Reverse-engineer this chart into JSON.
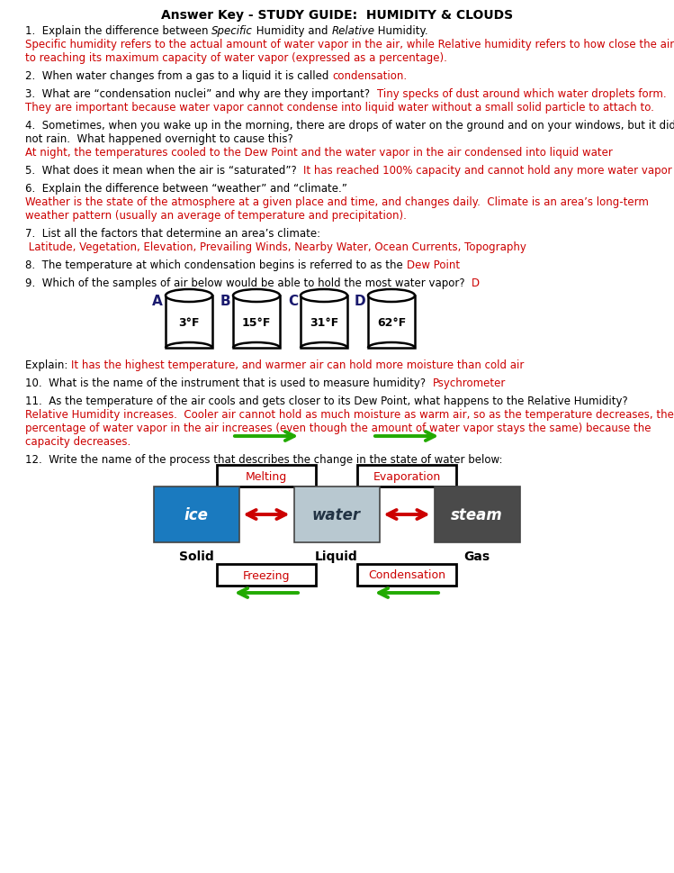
{
  "title": "Answer Key • STUDY GUIDE:  HUMIDITY & CLOUDS",
  "title_plain": "Answer Key - STUDY GUIDE:  HUMIDITY & CLOUDS",
  "bg_color": "#ffffff",
  "black": "#000000",
  "red": "#cc0000",
  "green": "#22aa00",
  "cylinder_labels": [
    "A",
    "B",
    "C",
    "D"
  ],
  "cylinder_temps": [
    "3°F",
    "15°F",
    "31°F",
    "62°F"
  ],
  "state_labels": [
    "Solid",
    "Liquid",
    "Gas"
  ],
  "q1_black1": "1.  Explain the difference between ",
  "q1_italic1": "Specific",
  "q1_black2": " Humidity and ",
  "q1_italic2": "Relative",
  "q1_black3": " Humidity.",
  "q1_red1": "Specific humidity refers to the actual amount of water vapor in the air, while Relative humidity refers to how close the air is",
  "q1_red2": "to reaching its maximum capacity of water vapor (expressed as a percentage).",
  "q2_black": "2.  When water changes from a gas to a liquid it is called ",
  "q2_red": "condensation.",
  "q3_black": "3.  What are “condensation nuclei” and why are they important?  ",
  "q3_red1": "Tiny specks of dust around which water droplets form.",
  "q3_red2": "They are important because water vapor cannot condense into liquid water without a small solid particle to attach to.",
  "q4_black1": "4.  Sometimes, when you wake up in the morning, there are drops of water on the ground and on your windows, but it did",
  "q4_black2": "not rain.  What happened overnight to cause this?",
  "q4_red": "At night, the temperatures cooled to the Dew Point and the water vapor in the air condensed into liquid water",
  "q5_black": "5.  What does it mean when the air is “saturated”?  ",
  "q5_red": "It has reached 100% capacity and cannot hold any more water vapor",
  "q6_black": "6.  Explain the difference between “weather” and “climate.”",
  "q6_red1": "Weather is the state of the atmosphere at a given place and time, and changes daily.  Climate is an area’s long-term",
  "q6_red2": "weather pattern (usually an average of temperature and precipitation).",
  "q7_black": "7.  List all the factors that determine an area’s climate:",
  "q7_red": " Latitude, Vegetation, Elevation, Prevailing Winds, Nearby Water, Ocean Currents, Topography",
  "q8_black": "8.  The temperature at which condensation begins is referred to as the ",
  "q8_red": "Dew Point",
  "q9_black": "9.  Which of the samples of air below would be able to hold the most water vapor?  ",
  "q9_red": "D",
  "explain_black": "Explain: ",
  "explain_red": "It has the highest temperature, and warmer air can hold more moisture than cold air",
  "q10_black": "10.  What is the name of the instrument that is used to measure humidity?  ",
  "q10_red": "Psychrometer",
  "q11_black": "11.  As the temperature of the air cools and gets closer to its Dew Point, what happens to the Relative Humidity?",
  "q11_red1": "Relative Humidity increases.  Cooler air cannot hold as much moisture as warm air, so as the temperature decreases, the",
  "q11_red2": "percentage of water vapor in the air increases (even though the amount of water vapor stays the same) because the",
  "q11_red3": "capacity decreases.",
  "q12_black": "12.  Write the name of the process that describes the change in the state of water below:"
}
